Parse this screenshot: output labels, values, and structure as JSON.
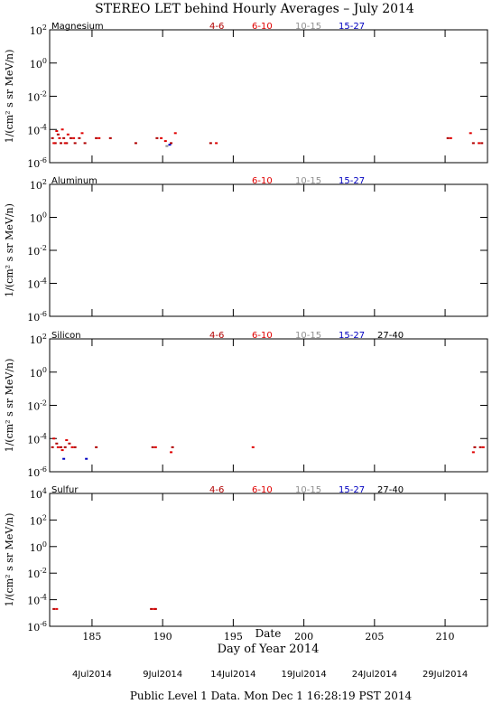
{
  "title": "STEREO LET behind Hourly Averages – July 2014",
  "footer": "Public Level 1 Data. Mon Dec  1 16:28:19 PST 2014",
  "x_axis": {
    "label": "Day of Year 2014",
    "xlim": [
      182,
      213
    ],
    "xticks": [
      185,
      190,
      195,
      200,
      205,
      210
    ],
    "date_label": "Date",
    "date_ticks": [
      {
        "value": 185,
        "label": "4Jul2014"
      },
      {
        "value": 190,
        "label": "9Jul2014"
      },
      {
        "value": 195,
        "label": "14Jul2014"
      },
      {
        "value": 200,
        "label": "19Jul2014"
      },
      {
        "value": 205,
        "label": "24Jul2014"
      },
      {
        "value": 210,
        "label": "29Jul2014"
      }
    ]
  },
  "chart_data": [
    {
      "type": "scatter",
      "title": "Magnesium",
      "ylabel": "1/(cm² s sr MeV/n)",
      "log": true,
      "ylim": [
        1e-06,
        100
      ],
      "yticks": [
        {
          "value": 100,
          "label": "10^2"
        },
        {
          "value": 1,
          "label": "10^0"
        },
        {
          "value": 0.01,
          "label": "10^-2"
        },
        {
          "value": 0.0001,
          "label": "10^-4"
        },
        {
          "value": 1e-06,
          "label": "10^-6"
        }
      ],
      "series": [
        {
          "name": "4-6",
          "color": "#b00000",
          "x": [
            182.2,
            182.4,
            182.6,
            182.8,
            183.0,
            183.2,
            183.5,
            183.8,
            184.1,
            184.5,
            185.3,
            186.3,
            188.1,
            189.6,
            190.6,
            193.4,
            210.2,
            212.0,
            212.6
          ],
          "values": [
            3e-05,
            1.5e-05,
            5e-05,
            1.5e-05,
            3e-05,
            1.5e-05,
            3e-05,
            1.5e-05,
            3e-05,
            1.5e-05,
            3e-05,
            3e-05,
            1.5e-05,
            3e-05,
            1.5e-05,
            1.5e-05,
            3e-05,
            1.5e-05,
            1.5e-05
          ]
        },
        {
          "name": "6-10",
          "color": "#e00000",
          "x": [
            182.3,
            182.5,
            182.7,
            182.9,
            183.1,
            183.3,
            183.7,
            184.3,
            185.5,
            189.9,
            190.2,
            190.9,
            193.8,
            210.4,
            211.8,
            212.4
          ],
          "values": [
            1.5e-05,
            8e-05,
            3e-05,
            0.0001,
            1.5e-05,
            5e-05,
            3e-05,
            6e-05,
            3e-05,
            3e-05,
            2e-05,
            6e-05,
            1.5e-05,
            3e-05,
            6e-05,
            1.5e-05
          ]
        },
        {
          "name": "10-15",
          "color": "#909090",
          "x": [
            190.3
          ],
          "values": [
            1e-05
          ]
        },
        {
          "name": "15-27",
          "color": "#0000c0",
          "x": [
            190.5
          ],
          "values": [
            1.2e-05
          ]
        }
      ]
    },
    {
      "type": "scatter",
      "title": "Aluminum",
      "ylabel": "1/(cm² s sr MeV/n)",
      "log": true,
      "ylim": [
        1e-06,
        100
      ],
      "yticks": [
        {
          "value": 100,
          "label": "10^2"
        },
        {
          "value": 1,
          "label": "10^0"
        },
        {
          "value": 0.01,
          "label": "10^-2"
        },
        {
          "value": 0.0001,
          "label": "10^-4"
        },
        {
          "value": 1e-06,
          "label": "10^-6"
        }
      ],
      "series": [
        {
          "name": "6-10",
          "color": "#e00000",
          "x": [],
          "values": []
        },
        {
          "name": "10-15",
          "color": "#909090",
          "x": [],
          "values": []
        },
        {
          "name": "15-27",
          "color": "#0000c0",
          "x": [],
          "values": []
        }
      ]
    },
    {
      "type": "scatter",
      "title": "Silicon",
      "ylabel": "1/(cm² s sr MeV/n)",
      "log": true,
      "ylim": [
        1e-06,
        100
      ],
      "yticks": [
        {
          "value": 100,
          "label": "10^2"
        },
        {
          "value": 1,
          "label": "10^0"
        },
        {
          "value": 0.01,
          "label": "10^-2"
        },
        {
          "value": 0.0001,
          "label": "10^-4"
        },
        {
          "value": 1e-06,
          "label": "10^-6"
        }
      ],
      "series": [
        {
          "name": "4-6",
          "color": "#b00000",
          "x": [
            182.2,
            182.5,
            182.8,
            183.1,
            183.4,
            183.8,
            185.3,
            189.3,
            190.7,
            212.1,
            212.5
          ],
          "values": [
            3e-05,
            5e-05,
            3e-05,
            3e-05,
            5e-05,
            3e-05,
            3e-05,
            3e-05,
            3e-05,
            3e-05,
            3e-05
          ]
        },
        {
          "name": "6-10",
          "color": "#e00000",
          "x": [
            182.3,
            182.6,
            182.9,
            183.2,
            183.6,
            189.5,
            190.6,
            196.4,
            212.0,
            212.7
          ],
          "values": [
            0.0001,
            3e-05,
            2e-05,
            8e-05,
            3e-05,
            3e-05,
            1.5e-05,
            3e-05,
            1.5e-05,
            3e-05
          ]
        },
        {
          "name": "10-15",
          "color": "#909090",
          "x": [],
          "values": []
        },
        {
          "name": "15-27",
          "color": "#0000c0",
          "x": [
            183.0,
            184.6
          ],
          "values": [
            6e-06,
            6e-06
          ]
        },
        {
          "name": "27-40",
          "color": "#000000",
          "x": [],
          "values": []
        }
      ]
    },
    {
      "type": "scatter",
      "title": "Sulfur",
      "ylabel": "1/(cm² s sr MeV/n)",
      "log": true,
      "ylim": [
        1e-06,
        10000
      ],
      "yticks": [
        {
          "value": 10000,
          "label": "10^4"
        },
        {
          "value": 100,
          "label": "10^2"
        },
        {
          "value": 1,
          "label": "10^0"
        },
        {
          "value": 0.01,
          "label": "10^-2"
        },
        {
          "value": 0.0001,
          "label": "10^-4"
        },
        {
          "value": 1e-06,
          "label": "10^-6"
        }
      ],
      "series": [
        {
          "name": "4-6",
          "color": "#b00000",
          "x": [
            182.3,
            189.2,
            189.5
          ],
          "values": [
            2e-05,
            2e-05,
            2e-05
          ]
        },
        {
          "name": "6-10",
          "color": "#e00000",
          "x": [
            182.5,
            189.4
          ],
          "values": [
            2e-05,
            2e-05
          ]
        },
        {
          "name": "10-15",
          "color": "#909090",
          "x": [],
          "values": []
        },
        {
          "name": "15-27",
          "color": "#0000c0",
          "x": [],
          "values": []
        },
        {
          "name": "27-40",
          "color": "#000000",
          "x": [],
          "values": []
        }
      ]
    }
  ]
}
